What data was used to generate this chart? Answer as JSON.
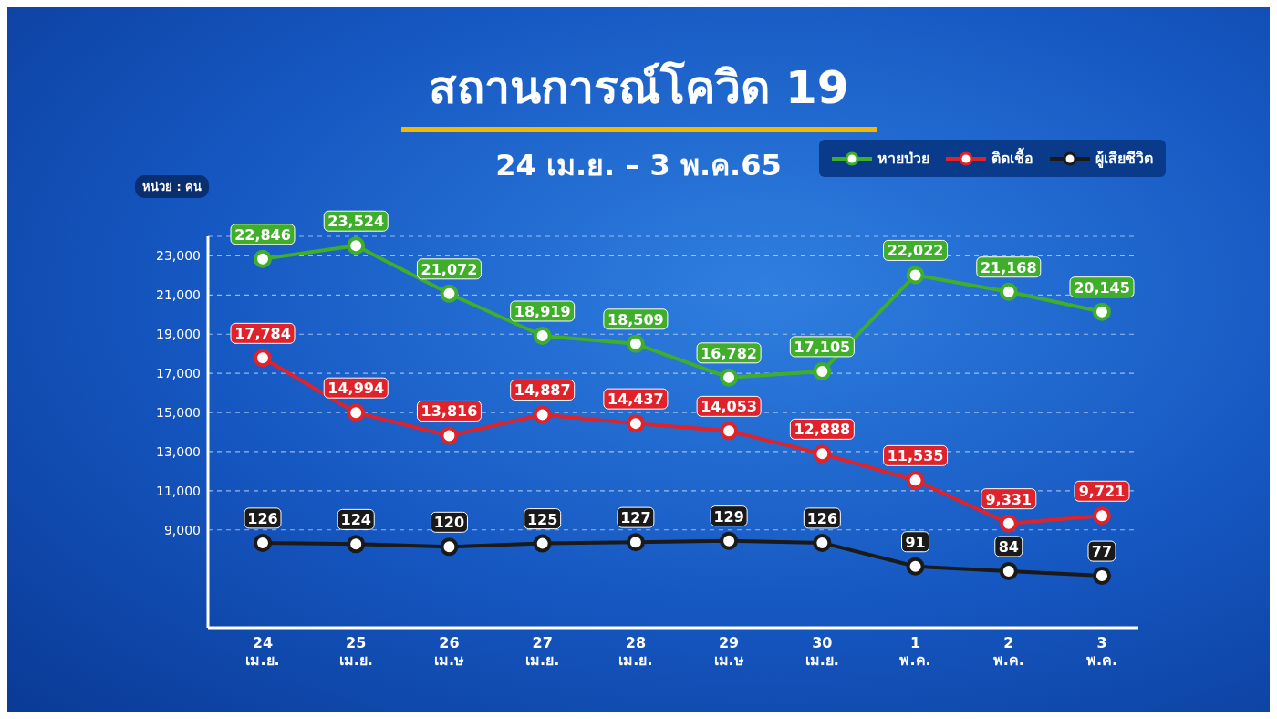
{
  "chart_data": {
    "type": "line",
    "title": "สถานการณ์โควิด 19",
    "subtitle": "24 เม.ย. – 3 พ.ค.65",
    "ylabel": "หน่วย : คน",
    "categories": [
      "24 เม.ย.",
      "25 เม.ย.",
      "26 เม.ษ",
      "27 เม.ย.",
      "28 เม.ย.",
      "29 เม.ษ",
      "30 เม.ย.",
      "1 พ.ค.",
      "2 พ.ค.",
      "3 พ.ค."
    ],
    "series": [
      {
        "name": "หายป่วย",
        "color": "#3fae2a",
        "values": [
          22846,
          23524,
          21072,
          18919,
          18509,
          16782,
          17105,
          22022,
          21168,
          20145
        ],
        "value_labels": [
          "22,846",
          "23,524",
          "21,072",
          "18,919",
          "18,509",
          "16,782",
          "17,105",
          "22,022",
          "21,168",
          "20,145"
        ]
      },
      {
        "name": "ติดเชื้อ",
        "color": "#e0222a",
        "values": [
          17784,
          14994,
          13816,
          14887,
          14437,
          14053,
          12888,
          11535,
          9331,
          9721
        ],
        "value_labels": [
          "17,784",
          "14,994",
          "13,816",
          "14,887",
          "14,437",
          "14,053",
          "12,888",
          "11,535",
          "9,331",
          "9,721"
        ]
      },
      {
        "name": "ผู้เสียชีวิต",
        "color": "#1a1a1a",
        "axis": "y2",
        "values": [
          126,
          124,
          120,
          125,
          127,
          129,
          126,
          91,
          84,
          77
        ],
        "value_labels": [
          "126",
          "124",
          "120",
          "125",
          "127",
          "129",
          "126",
          "91",
          "84",
          "77"
        ]
      }
    ],
    "ylim": [
      4000,
      24000
    ],
    "yticks": [
      {
        "value": 9000,
        "label": "9,000"
      },
      {
        "value": 11000,
        "label": "11,000"
      },
      {
        "value": 13000,
        "label": "13,000"
      },
      {
        "value": 15000,
        "label": "15,000"
      },
      {
        "value": 17000,
        "label": "17,000"
      },
      {
        "value": 19000,
        "label": "19,000"
      },
      {
        "value": 21000,
        "label": "21,000"
      },
      {
        "value": 23000,
        "label": "23,000"
      }
    ],
    "grid": "y",
    "legend": "top right",
    "marker": "circle",
    "line_style": "solid"
  }
}
